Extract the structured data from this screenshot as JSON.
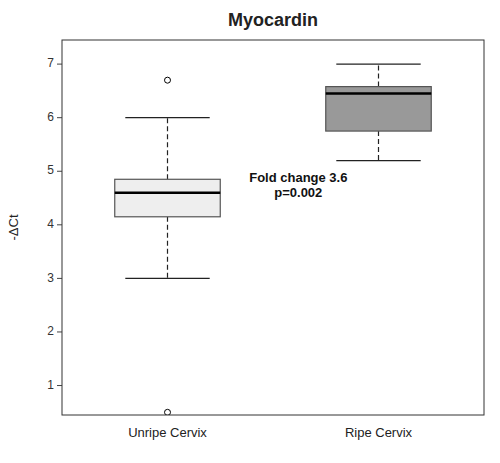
{
  "chart_data": {
    "type": "box",
    "title": "Myocardin",
    "ylabel": "-ΔCt",
    "categories": [
      "Unripe Cervix",
      "Ripe Cervix"
    ],
    "boxes": [
      {
        "whisker_low": 3.0,
        "q1": 4.15,
        "median": 4.6,
        "q3": 4.85,
        "whisker_high": 6.0,
        "outliers": [
          6.7,
          0.5
        ],
        "color": "#eeeeee"
      },
      {
        "whisker_low": 5.2,
        "q1": 5.75,
        "median": 6.45,
        "q3": 6.58,
        "whisker_high": 7.0,
        "outliers": [],
        "color": "#999999"
      }
    ],
    "ylim": [
      0.45,
      7.45
    ],
    "yticks": [
      1,
      2,
      3,
      4,
      5,
      6,
      7
    ],
    "annotation": "Fold change 3.6\np=0.002",
    "grid": false
  }
}
